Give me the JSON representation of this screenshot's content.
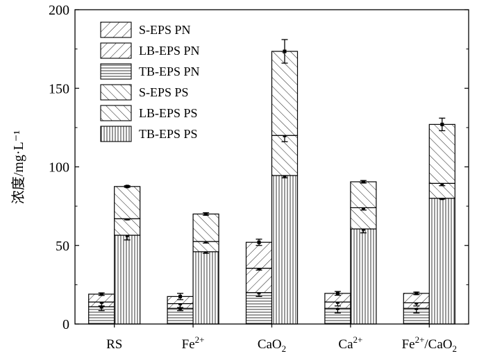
{
  "chart_data": {
    "type": "bar",
    "ylabel": "浓度/mg·L⁻¹",
    "ylim": [
      0,
      200
    ],
    "yticks": [
      "0",
      "50",
      "100",
      "150",
      "200"
    ],
    "categories": [
      {
        "base": "RS",
        "sup": "",
        "sub": "",
        "tail": ""
      },
      {
        "base": "Fe",
        "sup": "2+",
        "sub": "",
        "tail": ""
      },
      {
        "base": "CaO",
        "sup": "",
        "sub": "2",
        "tail": ""
      },
      {
        "base": "Ca",
        "sup": "2+",
        "sub": "",
        "tail": ""
      },
      {
        "base": "Fe",
        "sup": "2+",
        "sub": "2",
        "tail": "/CaO"
      }
    ],
    "legend": [
      "S-EPS PN",
      "LB-EPS PN",
      "TB-EPS PN",
      "S-EPS PS",
      "LB-EPS PS",
      "TB-EPS PS"
    ],
    "legend_position": "top-left",
    "stacks": [
      {
        "name": "PN",
        "segments": [
          {
            "name": "TB-EPS PN",
            "values": [
              11,
              10,
              20,
              10,
              10
            ],
            "pattern": "horizontal"
          },
          {
            "name": "LB-EPS PN",
            "values": [
              3,
              3,
              15.5,
              4,
              3.5
            ],
            "pattern": "slash"
          },
          {
            "name": "S-EPS PN",
            "values": [
              5,
              4.5,
              16.5,
              5.5,
              6
            ],
            "pattern": "slash"
          }
        ],
        "errors": [
          [
            2.5,
            1.5,
            2.5,
            3,
            3
          ],
          [
            2.5,
            2.5,
            1.2,
            2.5,
            2
          ],
          [
            0.8,
            2,
            2,
            1.2,
            0.8
          ]
        ]
      },
      {
        "name": "PS",
        "segments": [
          {
            "name": "TB-EPS PS",
            "values": [
              56.5,
              46,
              94.5,
              60.5,
              80
            ],
            "pattern": "vertical"
          },
          {
            "name": "LB-EPS PS",
            "values": [
              10.5,
              6.5,
              25.5,
              13.5,
              9.5
            ],
            "pattern": "backslash"
          },
          {
            "name": "S-EPS PS",
            "values": [
              20.5,
              17.5,
              53.5,
              16.5,
              37.5
            ],
            "pattern": "backslash"
          }
        ],
        "errors": [
          [
            3,
            1,
            1.5,
            2.5,
            0.5
          ],
          [
            0.7,
            1,
            4,
            1.5,
            1.5
          ],
          [
            0.5,
            0.8,
            7.5,
            0.8,
            4
          ]
        ]
      }
    ]
  }
}
